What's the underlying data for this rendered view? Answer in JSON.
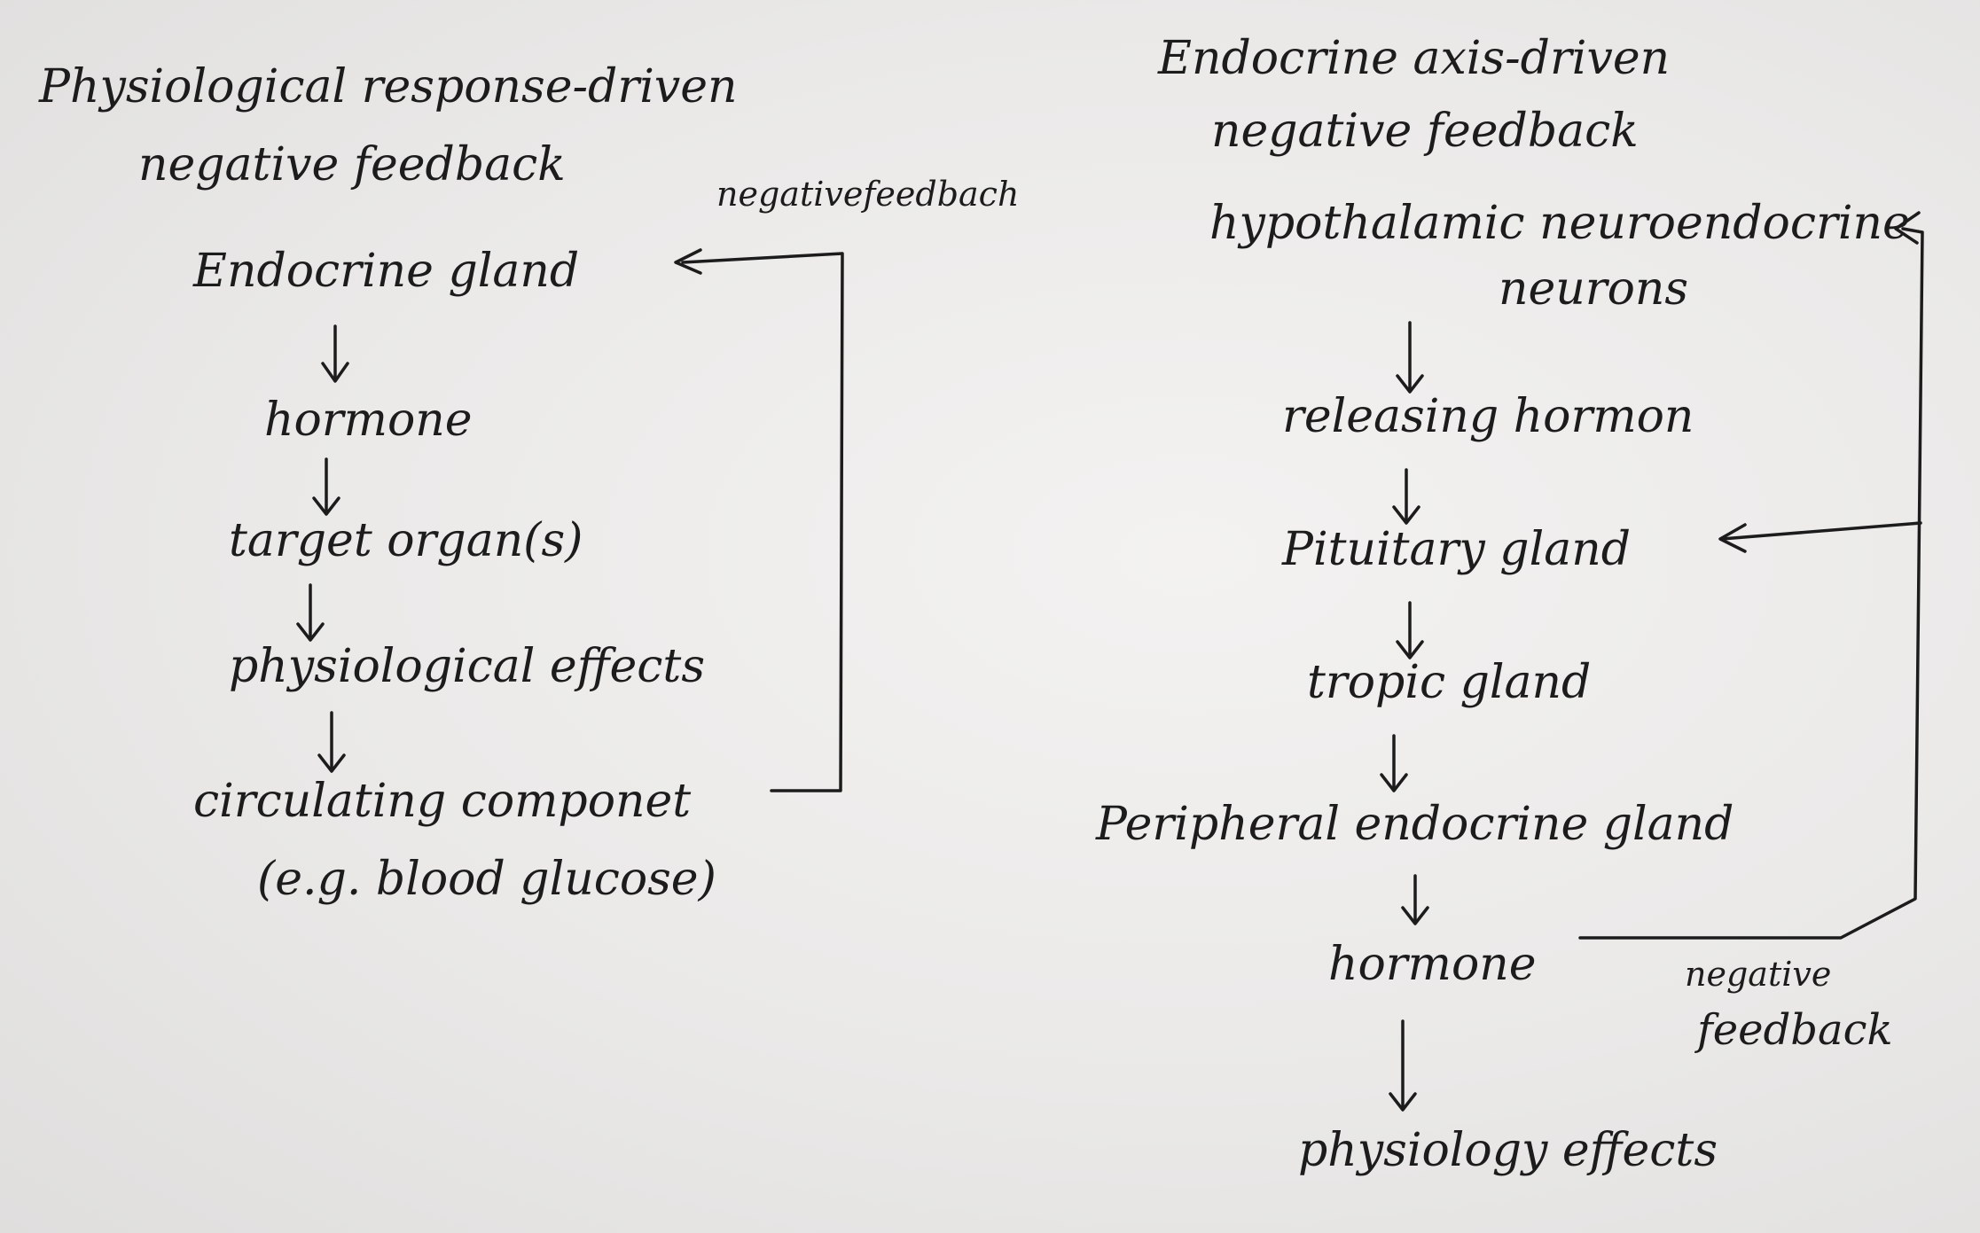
{
  "left_diagram": {
    "title_line1": "Physiological response-driven",
    "title_line2": "negative feedback",
    "feedback_label": "negativefeedbach",
    "nodes": [
      "Endocrine gland",
      "hormone",
      "target organ(s)",
      "physiological effects",
      "circulating componet",
      "(e.g. blood glucose)"
    ]
  },
  "right_diagram": {
    "title_line1": "Endocrine axis-driven",
    "title_line2": "negative feedback",
    "nodes": [
      "hypothalamic neuroendocrine",
      "neurons",
      "releasing hormon",
      "Pituitary gland",
      "tropic gland",
      "Peripheral endocrine gland",
      "hormone",
      "physiology effects"
    ],
    "feedback_label_line1": "negative",
    "feedback_label_line2": "feedback"
  }
}
